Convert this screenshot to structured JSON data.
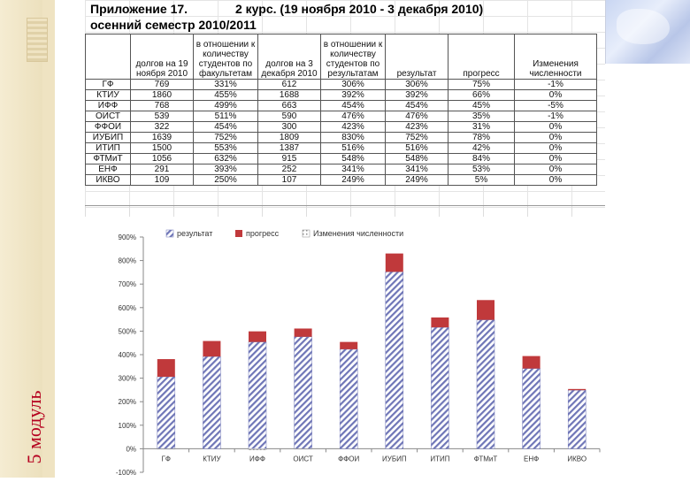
{
  "side_label": "5 модуль",
  "header": {
    "title_left": "Приложение 17.",
    "title_right": "2 курс.  (19 ноября 2010  -  3 декабря 2010)",
    "subtitle": "осенний семестр 2010/2011"
  },
  "table": {
    "columns": [
      "",
      "долгов на 19 ноября 2010",
      "в отношении к количеству студентов по факультетам",
      "долгов на 3 декабря 2010",
      "в отношении к количеству студентов по результатам",
      "результат",
      "прогресс",
      "Изменения численности"
    ],
    "rows": [
      [
        "ГФ",
        "769",
        "331%",
        "612",
        "306%",
        "306%",
        "75%",
        "-1%"
      ],
      [
        "КТИУ",
        "1860",
        "455%",
        "1688",
        "392%",
        "392%",
        "66%",
        "0%"
      ],
      [
        "ИФФ",
        "768",
        "499%",
        "663",
        "454%",
        "454%",
        "45%",
        "-5%"
      ],
      [
        "ОИСТ",
        "539",
        "511%",
        "590",
        "476%",
        "476%",
        "35%",
        "-1%"
      ],
      [
        "ФФОИ",
        "322",
        "454%",
        "300",
        "423%",
        "423%",
        "31%",
        "0%"
      ],
      [
        "ИУБИП",
        "1639",
        "752%",
        "1809",
        "830%",
        "752%",
        "78%",
        "0%"
      ],
      [
        "ИТИП",
        "1500",
        "553%",
        "1387",
        "516%",
        "516%",
        "42%",
        "0%"
      ],
      [
        "ФТМиТ",
        "1056",
        "632%",
        "915",
        "548%",
        "548%",
        "84%",
        "0%"
      ],
      [
        "ЕНФ",
        "291",
        "393%",
        "252",
        "341%",
        "341%",
        "53%",
        "0%"
      ],
      [
        "ИКВО",
        "109",
        "250%",
        "107",
        "249%",
        "249%",
        "5%",
        "0%"
      ]
    ]
  },
  "colors": {
    "result": "#6f76b7",
    "progress": "#c0393b",
    "change": "#8c8c8c",
    "side_text": "#b5001f",
    "table_blue": "#1a3aa8"
  },
  "chart_data": {
    "type": "bar",
    "stacked": true,
    "categories": [
      "ГФ",
      "КТИУ",
      "ИФФ",
      "ОИСТ",
      "ФФОИ",
      "ИУБИП",
      "ИТИП",
      "ФТМиТ",
      "ЕНФ",
      "ИКВО"
    ],
    "series": [
      {
        "name": "результат",
        "values": [
          306,
          392,
          454,
          476,
          423,
          752,
          516,
          548,
          341,
          249
        ]
      },
      {
        "name": "прогресс",
        "values": [
          75,
          66,
          45,
          35,
          31,
          78,
          42,
          84,
          53,
          5
        ]
      },
      {
        "name": "Изменения численности",
        "values": [
          -1,
          0,
          -5,
          -1,
          0,
          0,
          0,
          0,
          0,
          0
        ]
      }
    ],
    "ylim": [
      -100,
      900
    ],
    "yticks": [
      "-100%",
      "0%",
      "100%",
      "200%",
      "300%",
      "400%",
      "500%",
      "600%",
      "700%",
      "800%",
      "900%"
    ],
    "legend_position": "top",
    "title": "",
    "xlabel": "",
    "ylabel": ""
  }
}
